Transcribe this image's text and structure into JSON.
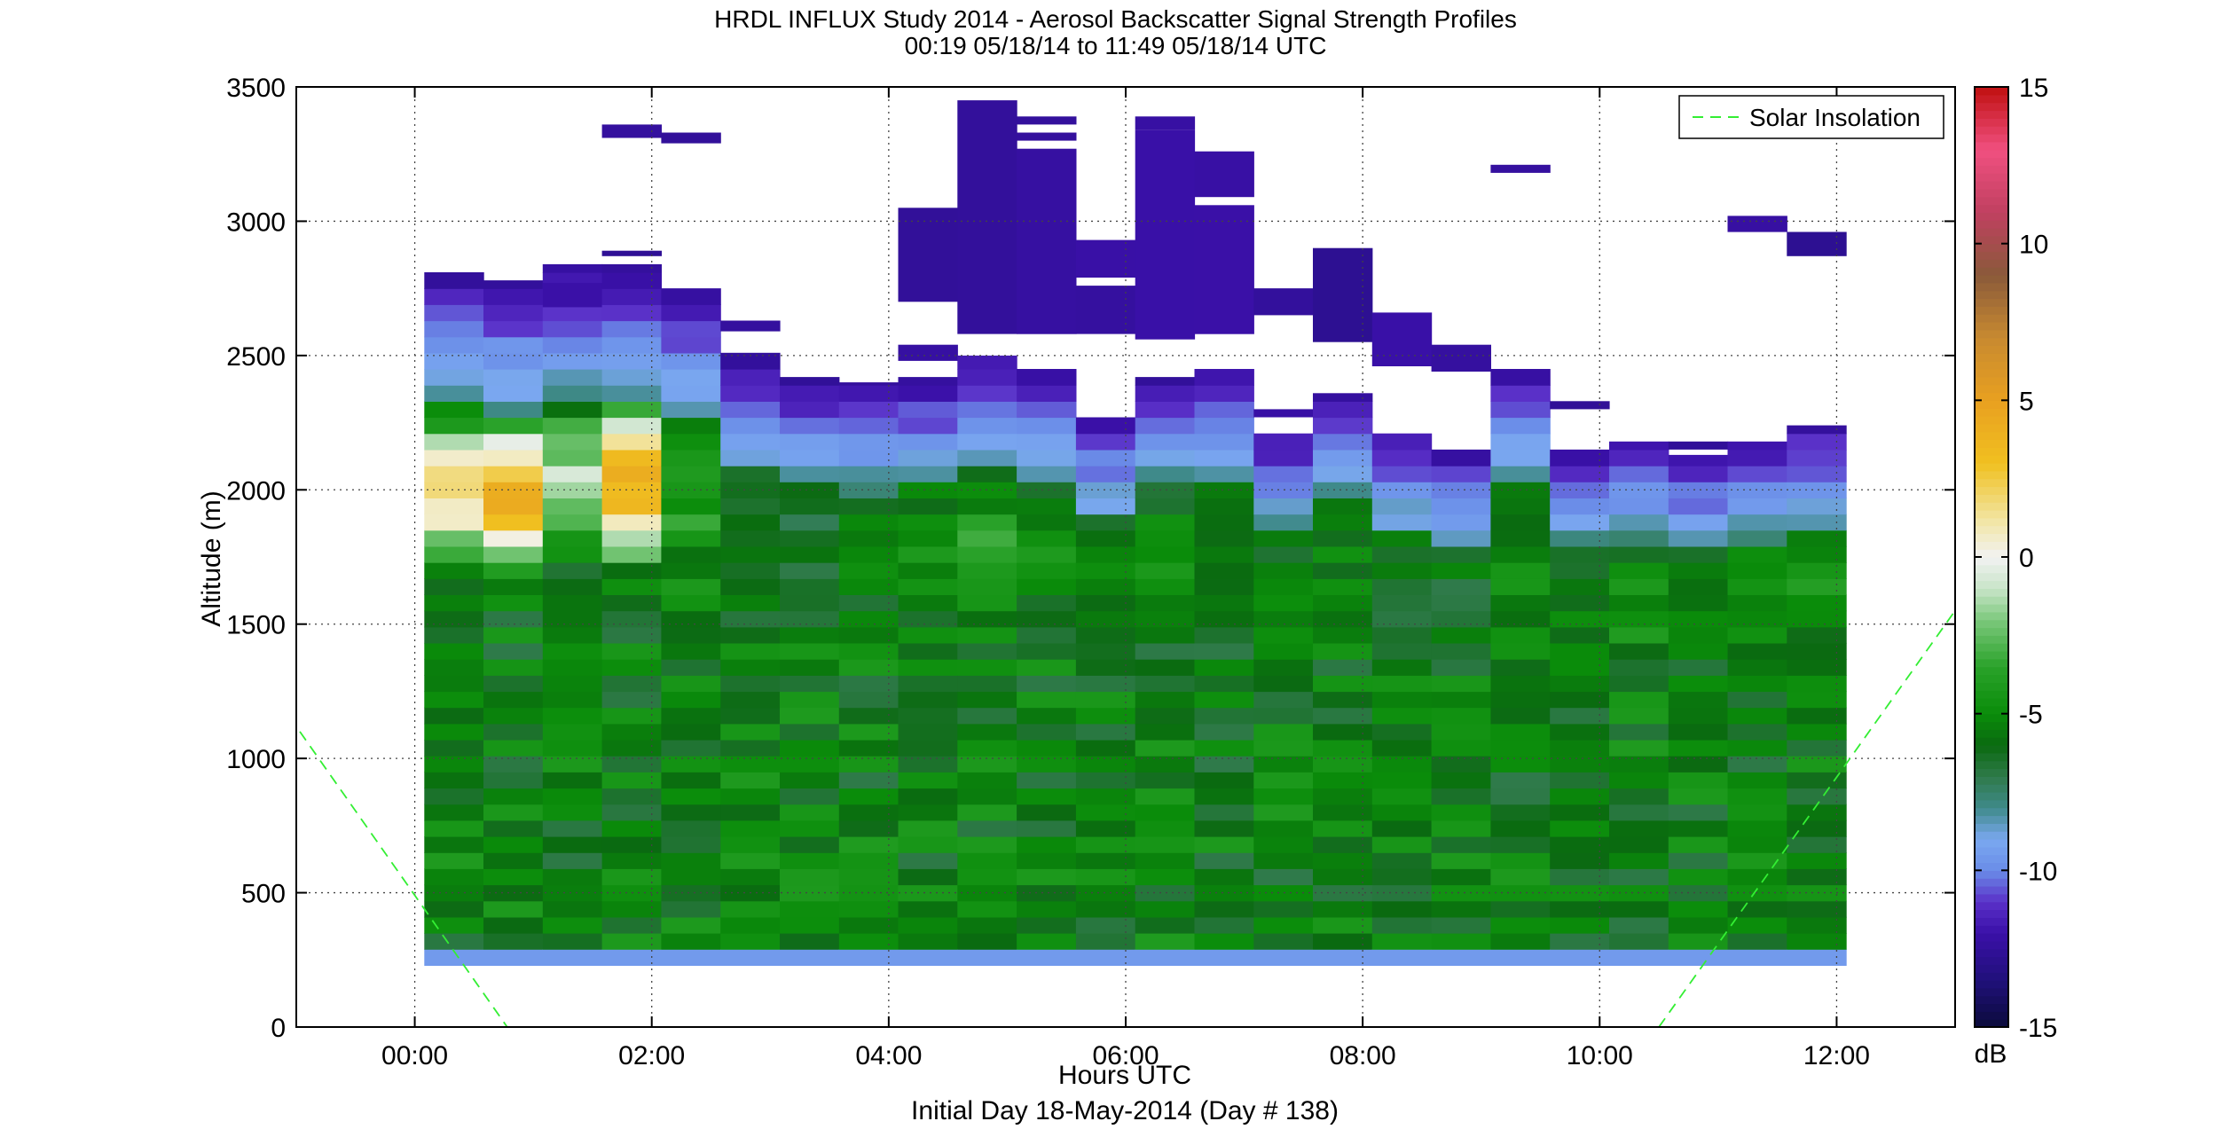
{
  "chart_data": {
    "type": "heatmap",
    "title": "HRDL INFLUX Study 2014 - Aerosol Backscatter Signal Strength Profiles",
    "subtitle": "00:19 05/18/14 to 11:49 05/18/14  UTC",
    "xlabel": "Hours UTC",
    "xlabel2": "Initial Day 18-May-2014 (Day # 138)",
    "ylabel": "Altitude (m)",
    "xlim_hours": [
      -1.0,
      13.0
    ],
    "ylim": [
      0,
      3500
    ],
    "x_ticks": [
      {
        "value": 0,
        "label": "00:00"
      },
      {
        "value": 2,
        "label": "02:00"
      },
      {
        "value": 4,
        "label": "04:00"
      },
      {
        "value": 6,
        "label": "06:00"
      },
      {
        "value": 8,
        "label": "08:00"
      },
      {
        "value": 10,
        "label": "10:00"
      },
      {
        "value": 12,
        "label": "12:00"
      }
    ],
    "y_ticks": [
      {
        "value": 0,
        "label": "0"
      },
      {
        "value": 500,
        "label": "500"
      },
      {
        "value": 1000,
        "label": "1000"
      },
      {
        "value": 1500,
        "label": "1500"
      },
      {
        "value": 2000,
        "label": "2000"
      },
      {
        "value": 2500,
        "label": "2500"
      },
      {
        "value": 3000,
        "label": "3000"
      },
      {
        "value": 3500,
        "label": "3500"
      }
    ],
    "grid": true,
    "colorbar": {
      "min": -15,
      "max": 15,
      "units": "dB",
      "ticks": [
        {
          "value": -15,
          "label": "-15"
        },
        {
          "value": -10,
          "label": "-10"
        },
        {
          "value": -5,
          "label": "-5"
        },
        {
          "value": 0,
          "label": "0"
        },
        {
          "value": 5,
          "label": "5"
        },
        {
          "value": 10,
          "label": "10"
        },
        {
          "value": 15,
          "label": "15"
        }
      ],
      "stops": [
        [
          -15,
          "#0a0a3a"
        ],
        [
          -13.5,
          "#20107a"
        ],
        [
          -12,
          "#3a10a8"
        ],
        [
          -11,
          "#5a30c8"
        ],
        [
          -10,
          "#6a8ce8"
        ],
        [
          -9,
          "#7aa8f0"
        ],
        [
          -8,
          "#3f8a8a"
        ],
        [
          -7,
          "#2f7a4a"
        ],
        [
          -6,
          "#0a6a10"
        ],
        [
          -5,
          "#0a8c0a"
        ],
        [
          -3.5,
          "#2aa22a"
        ],
        [
          -2,
          "#7cc87c"
        ],
        [
          -1,
          "#c8e4c8"
        ],
        [
          0,
          "#f2f2f2"
        ],
        [
          1,
          "#f2e8b0"
        ],
        [
          3,
          "#f0c020"
        ],
        [
          5,
          "#e8a020"
        ],
        [
          7,
          "#c88a30"
        ],
        [
          9,
          "#8a5a3a"
        ],
        [
          11,
          "#c04060"
        ],
        [
          13,
          "#f05080"
        ],
        [
          15,
          "#c01010"
        ]
      ]
    },
    "series": [
      {
        "name": "Solar Insolation",
        "style": "dashed",
        "color": "#33ee33",
        "segments": [
          [
            [
              -0.97,
              1100
            ],
            [
              0.78,
              0
            ]
          ],
          [
            [
              10.5,
              0
            ],
            [
              13.0,
              1550
            ]
          ]
        ]
      }
    ],
    "legend": {
      "position": "top-right",
      "entries": [
        "Solar Insolation"
      ]
    },
    "profiles": [
      {
        "t": 0.33,
        "sfc": 230,
        "top": 2810,
        "max": 1.0,
        "cirrus": []
      },
      {
        "t": 0.83,
        "sfc": 230,
        "top": 2780,
        "max": 3.5,
        "cirrus": []
      },
      {
        "t": 1.33,
        "sfc": 230,
        "top": 2840,
        "max": -1.5,
        "cirrus": [
          [
            2680,
            2770
          ]
        ]
      },
      {
        "t": 1.83,
        "sfc": 230,
        "top": 2840,
        "max": 4.0,
        "cirrus": [
          [
            2870,
            2890
          ],
          [
            3310,
            3360
          ]
        ]
      },
      {
        "t": 2.33,
        "sfc": 230,
        "top": 2750,
        "max": -4.0,
        "cirrus": [
          [
            3290,
            3330
          ]
        ]
      },
      {
        "t": 2.83,
        "sfc": 230,
        "top": 2510,
        "max": -6.5,
        "cirrus": [
          [
            2590,
            2630
          ]
        ]
      },
      {
        "t": 3.33,
        "sfc": 230,
        "top": 2420,
        "max": -6.5,
        "cirrus": []
      },
      {
        "t": 3.83,
        "sfc": 230,
        "top": 2400,
        "max": -5.5,
        "cirrus": []
      },
      {
        "t": 4.33,
        "sfc": 230,
        "top": 2420,
        "max": -5.0,
        "cirrus": [
          [
            2480,
            2540
          ],
          [
            2700,
            3050
          ]
        ]
      },
      {
        "t": 4.83,
        "sfc": 230,
        "top": 2500,
        "max": -4.0,
        "cirrus": [
          [
            2580,
            3450
          ]
        ]
      },
      {
        "t": 5.33,
        "sfc": 230,
        "top": 2450,
        "max": -5.0,
        "cirrus": [
          [
            2580,
            3270
          ],
          [
            3300,
            3330
          ],
          [
            3360,
            3390
          ]
        ]
      },
      {
        "t": 5.83,
        "sfc": 230,
        "top": 2270,
        "max": -5.5,
        "cirrus": [
          [
            2580,
            2760
          ],
          [
            2790,
            2930
          ]
        ]
      },
      {
        "t": 6.33,
        "sfc": 230,
        "top": 2420,
        "max": -5.0,
        "cirrus": [
          [
            2560,
            3340
          ],
          [
            3340,
            3390
          ]
        ]
      },
      {
        "t": 6.83,
        "sfc": 230,
        "top": 2450,
        "max": -5.5,
        "cirrus": [
          [
            2580,
            3060
          ],
          [
            3090,
            3260
          ]
        ]
      },
      {
        "t": 7.33,
        "sfc": 230,
        "top": 2210,
        "max": -5.5,
        "cirrus": [
          [
            2270,
            2300
          ],
          [
            2650,
            2750
          ]
        ]
      },
      {
        "t": 7.83,
        "sfc": 230,
        "top": 2360,
        "max": -5.5,
        "cirrus": [
          [
            2550,
            2900
          ]
        ]
      },
      {
        "t": 8.33,
        "sfc": 230,
        "top": 2210,
        "max": -6.0,
        "cirrus": [
          [
            2460,
            2660
          ]
        ]
      },
      {
        "t": 8.83,
        "sfc": 230,
        "top": 2150,
        "max": -6.0,
        "cirrus": [
          [
            2440,
            2540
          ]
        ]
      },
      {
        "t": 9.33,
        "sfc": 230,
        "top": 2450,
        "max": -5.0,
        "cirrus": [
          [
            3180,
            3210
          ]
        ]
      },
      {
        "t": 9.83,
        "sfc": 230,
        "top": 2150,
        "max": -5.5,
        "cirrus": [
          [
            2300,
            2330
          ]
        ]
      },
      {
        "t": 10.33,
        "sfc": 230,
        "top": 2180,
        "max": -4.5,
        "cirrus": []
      },
      {
        "t": 10.83,
        "sfc": 230,
        "top": 2130,
        "max": -5.0,
        "cirrus": [
          [
            2150,
            2180
          ]
        ]
      },
      {
        "t": 11.33,
        "sfc": 230,
        "top": 2180,
        "max": -4.5,
        "cirrus": [
          [
            2960,
            3020
          ]
        ]
      },
      {
        "t": 11.83,
        "sfc": 230,
        "top": 2240,
        "max": -4.5,
        "cirrus": [
          [
            2870,
            2960
          ]
        ]
      }
    ]
  }
}
